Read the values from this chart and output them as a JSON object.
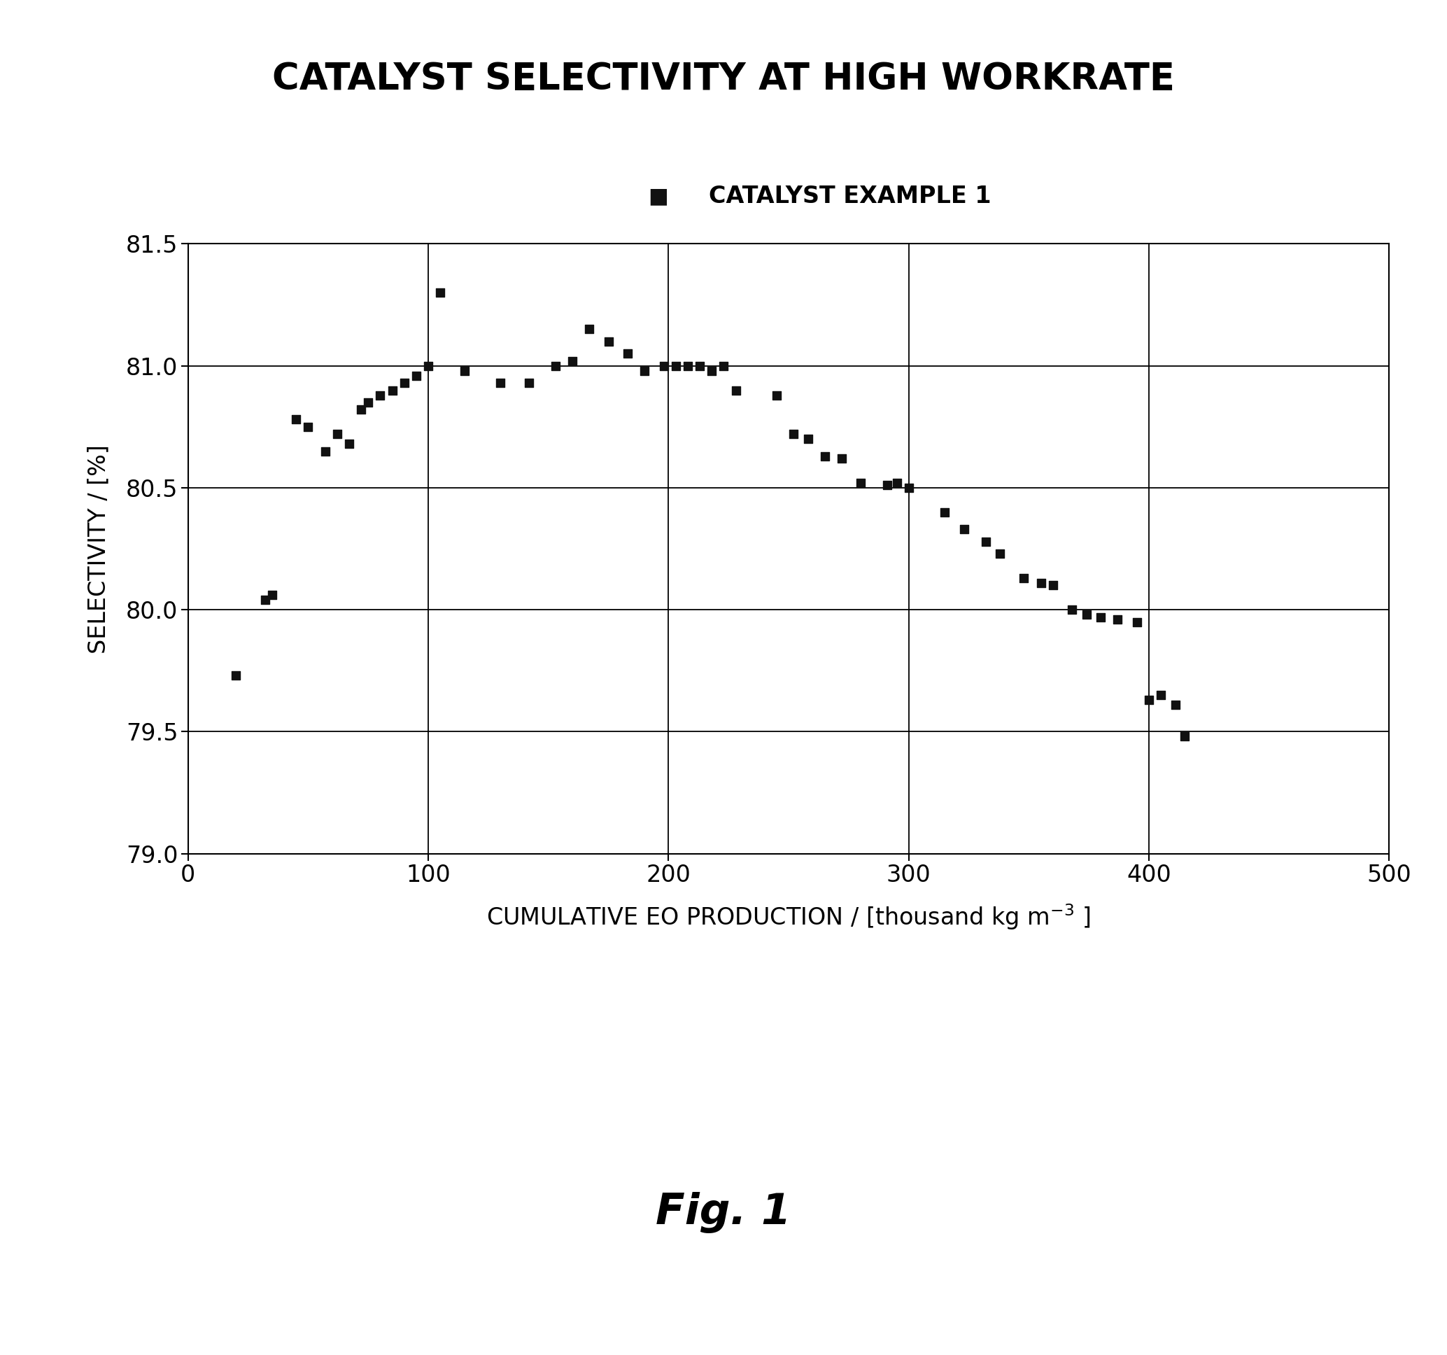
{
  "title": "CATALYST SELECTIVITY AT HIGH WORKRATE",
  "xlabel": "CUMULATIVE EO PRODUCTION / [thousand kg m$^{-3}$ ]",
  "ylabel": "SELECTIVITY / [%]",
  "legend_label": "CATALYST EXAMPLE 1",
  "xlim": [
    0,
    500
  ],
  "ylim": [
    79.0,
    81.5
  ],
  "xticks": [
    0,
    100,
    200,
    300,
    400,
    500
  ],
  "yticks": [
    79.0,
    79.5,
    80.0,
    80.5,
    81.0,
    81.5
  ],
  "fig_caption": "Fig. 1",
  "data_x": [
    20,
    32,
    35,
    45,
    50,
    57,
    62,
    67,
    72,
    75,
    80,
    85,
    90,
    95,
    100,
    105,
    115,
    130,
    142,
    153,
    160,
    167,
    175,
    183,
    190,
    198,
    203,
    208,
    213,
    218,
    223,
    228,
    245,
    252,
    258,
    265,
    272,
    280,
    291,
    295,
    300,
    315,
    323,
    332,
    338,
    348,
    355,
    360,
    368,
    374,
    380,
    387,
    395,
    400,
    405,
    411,
    415
  ],
  "data_y": [
    79.73,
    80.04,
    80.06,
    80.78,
    80.75,
    80.65,
    80.72,
    80.68,
    80.82,
    80.85,
    80.88,
    80.9,
    80.93,
    80.96,
    81.0,
    81.3,
    80.98,
    80.93,
    80.93,
    81.0,
    81.02,
    81.15,
    81.1,
    81.05,
    80.98,
    81.0,
    81.0,
    81.0,
    81.0,
    80.98,
    81.0,
    80.9,
    80.88,
    80.72,
    80.7,
    80.63,
    80.62,
    80.52,
    80.51,
    80.52,
    80.5,
    80.4,
    80.33,
    80.28,
    80.23,
    80.13,
    80.11,
    80.1,
    80.0,
    79.98,
    79.97,
    79.96,
    79.95,
    79.63,
    79.65,
    79.61,
    79.48
  ],
  "marker_color": "#111111",
  "marker_size": 75,
  "bg_color": "#ffffff",
  "grid_color": "#000000",
  "title_fontsize": 38,
  "legend_fontsize": 24,
  "axis_label_fontsize": 24,
  "tick_fontsize": 24,
  "caption_fontsize": 44
}
